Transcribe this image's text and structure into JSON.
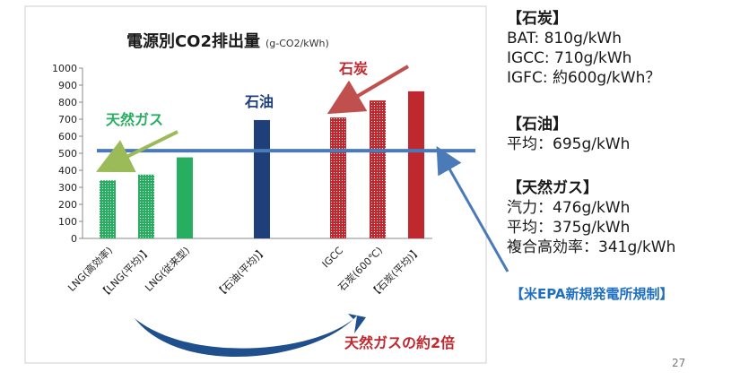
{
  "chart_data": {
    "type": "bar",
    "title": "電源別CO2排出量",
    "unit_label": "(g-CO2/kWh)",
    "categories": [
      "LNG(高効率)",
      "【LNG(平均)】",
      "LNG(従来型)",
      "【石油(平均)】",
      "IGCC",
      "石炭(600℃)",
      "【石炭(平均)】"
    ],
    "values": [
      341,
      375,
      476,
      695,
      710,
      810,
      864
    ],
    "ylim": [
      0,
      1000
    ],
    "yticks": [
      "0",
      "100",
      "200",
      "300",
      "400",
      "500",
      "600",
      "700",
      "800",
      "900",
      "1000"
    ],
    "grid": false,
    "reference_line": 515,
    "colors": [
      "#27ae60",
      "#27ae60",
      "#27ae60",
      "#1f3f7a",
      "#c0282f",
      "#c0282f",
      "#c0282f"
    ],
    "hatched": [
      true,
      true,
      false,
      false,
      true,
      true,
      false
    ]
  },
  "annotations": {
    "coal_label": "石炭",
    "oil_label": "石油",
    "gas_label": "天然ガス",
    "multiplier": "天然ガスの約2倍"
  },
  "colors": {
    "gas": "#27ae60",
    "oil": "#1f3f7a",
    "coal": "#c0282f",
    "reference": "#4a7ab8",
    "arrow_blue": "#1f4f8c"
  },
  "side_panel": {
    "coal": {
      "heading": "【石炭】",
      "lines": [
        "BAT:  810g/kWh",
        "IGCC: 710g/kWh",
        "IGFC: 約600g/kWh？"
      ]
    },
    "oil": {
      "heading": "【石油】",
      "lines": [
        "平均：695g/kWh"
      ]
    },
    "gas": {
      "heading": "【天然ガス】",
      "lines": [
        "汽力：476g/kWh",
        "平均：375g/kWh",
        "複合高効率：341g/kWh"
      ]
    }
  },
  "rule_note": "【米EPA新規発電所規制】",
  "page_number": "27"
}
